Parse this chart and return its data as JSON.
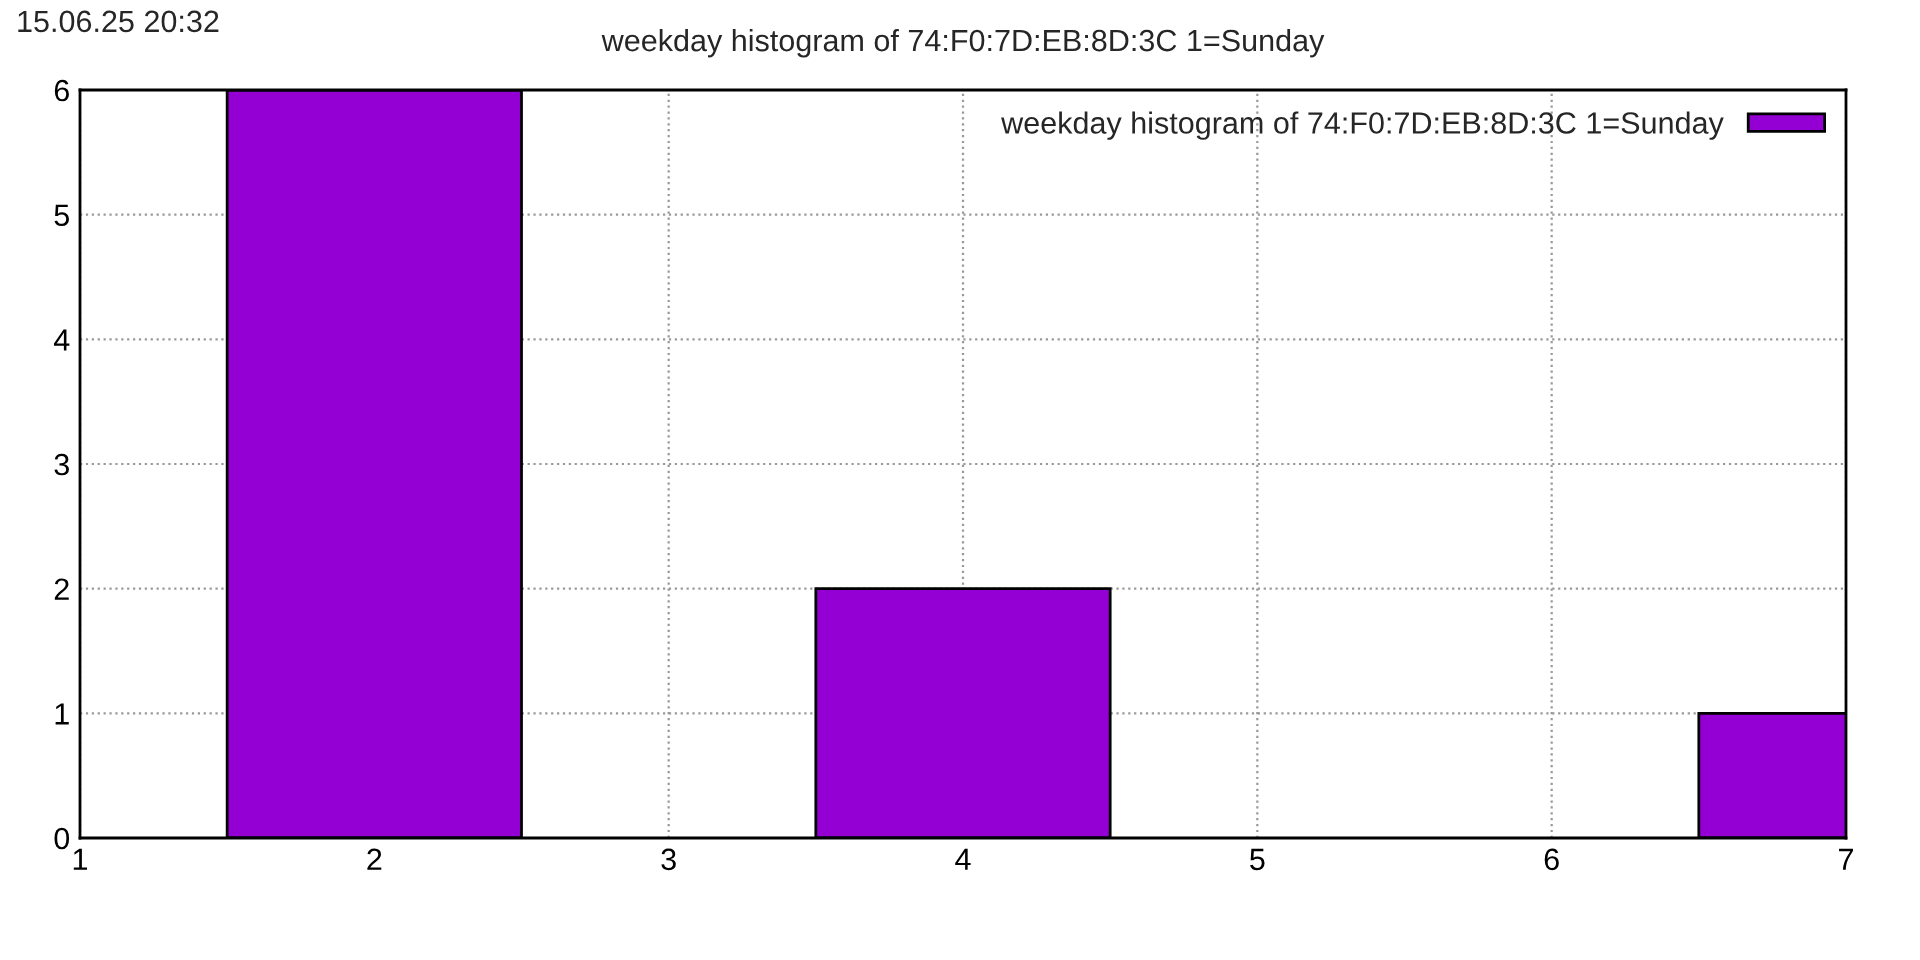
{
  "chart_data": {
    "type": "bar",
    "title": "weekday histogram of 74:F0:7D:EB:8D:3C 1=Sunday",
    "annotations": [
      "15.06.25 20:32"
    ],
    "x": [
      2,
      4,
      7
    ],
    "series": [
      {
        "name": "weekday histogram of 74:F0:7D:EB:8D:3C 1=Sunday",
        "color": "#9400d3",
        "values": [
          6,
          2,
          1
        ]
      }
    ],
    "xlim": [
      1,
      7
    ],
    "xticks": [
      1,
      2,
      3,
      4,
      5,
      6,
      7
    ],
    "ylim": [
      0,
      6
    ],
    "yticks": [
      0,
      1,
      2,
      3,
      4,
      5,
      6
    ],
    "grid": true,
    "legend": "top right"
  }
}
